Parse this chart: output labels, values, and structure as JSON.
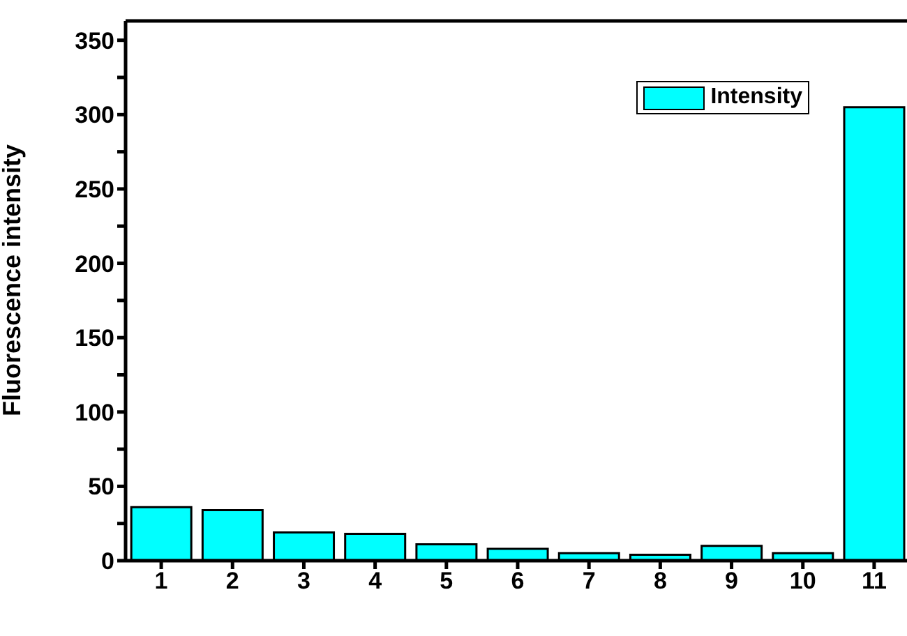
{
  "chart_data": {
    "type": "bar",
    "ylabel": "Fluorescence intensity",
    "categories": [
      "1",
      "2",
      "3",
      "4",
      "5",
      "6",
      "7",
      "8",
      "9",
      "10",
      "11"
    ],
    "series": [
      {
        "name": "Intensity",
        "color": "#00ffff",
        "values": [
          36,
          34,
          19,
          18,
          11,
          8,
          5,
          4,
          10,
          5,
          305
        ]
      }
    ],
    "ylim": [
      0,
      363
    ],
    "yticks": [
      0,
      {
        "value": 25,
        "label": null
      },
      50,
      {
        "value": 75,
        "label": null
      },
      100,
      {
        "value": 125,
        "label": null
      },
      150,
      {
        "value": 175,
        "label": null
      },
      200,
      {
        "value": 225,
        "label": null
      },
      250,
      {
        "value": 275,
        "label": null
      },
      300,
      {
        "value": 325,
        "label": null
      },
      350
    ],
    "legend": "top right",
    "grid": false
  }
}
